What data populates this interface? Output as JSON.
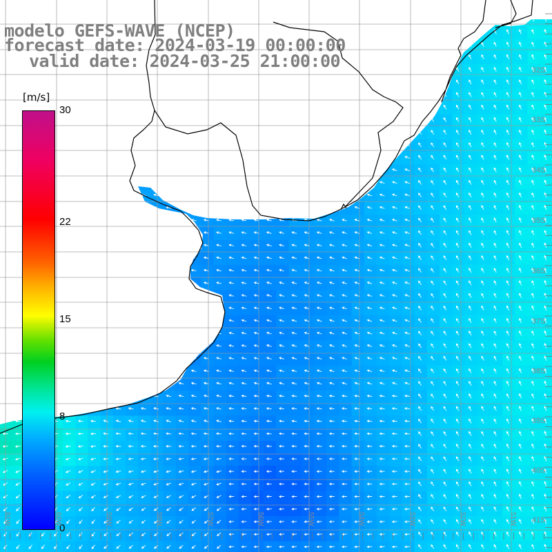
{
  "header": {
    "line1": "modelo GEFS-WAVE (NCEP)",
    "line2": "forecast date: 2024-03-19 00:00:00",
    "line3": "valid date: 2024-03-25 21:00:00"
  },
  "colorbar": {
    "unit": "[m/s]",
    "ticks": [
      {
        "label": "30",
        "value": 30
      },
      {
        "label": "22",
        "value": 22
      },
      {
        "label": "15",
        "value": 15
      },
      {
        "label": "8",
        "value": 8
      },
      {
        "label": "0",
        "value": 0
      }
    ],
    "min": 0,
    "max": 30
  },
  "map": {
    "lon_labels": [
      "61W",
      "60W",
      "59W",
      "58W",
      "57W",
      "56W",
      "55W",
      "54W",
      "53W",
      "52W",
      "51W"
    ],
    "lat_labels": [
      "32S",
      "33S",
      "34S",
      "35S",
      "36S",
      "37S",
      "38S",
      "39S",
      "40S",
      "41S"
    ],
    "colors": {
      "land": "#ffffff",
      "grid": "#999999",
      "coast": "#000000",
      "arrow": "#ffffff"
    }
  }
}
